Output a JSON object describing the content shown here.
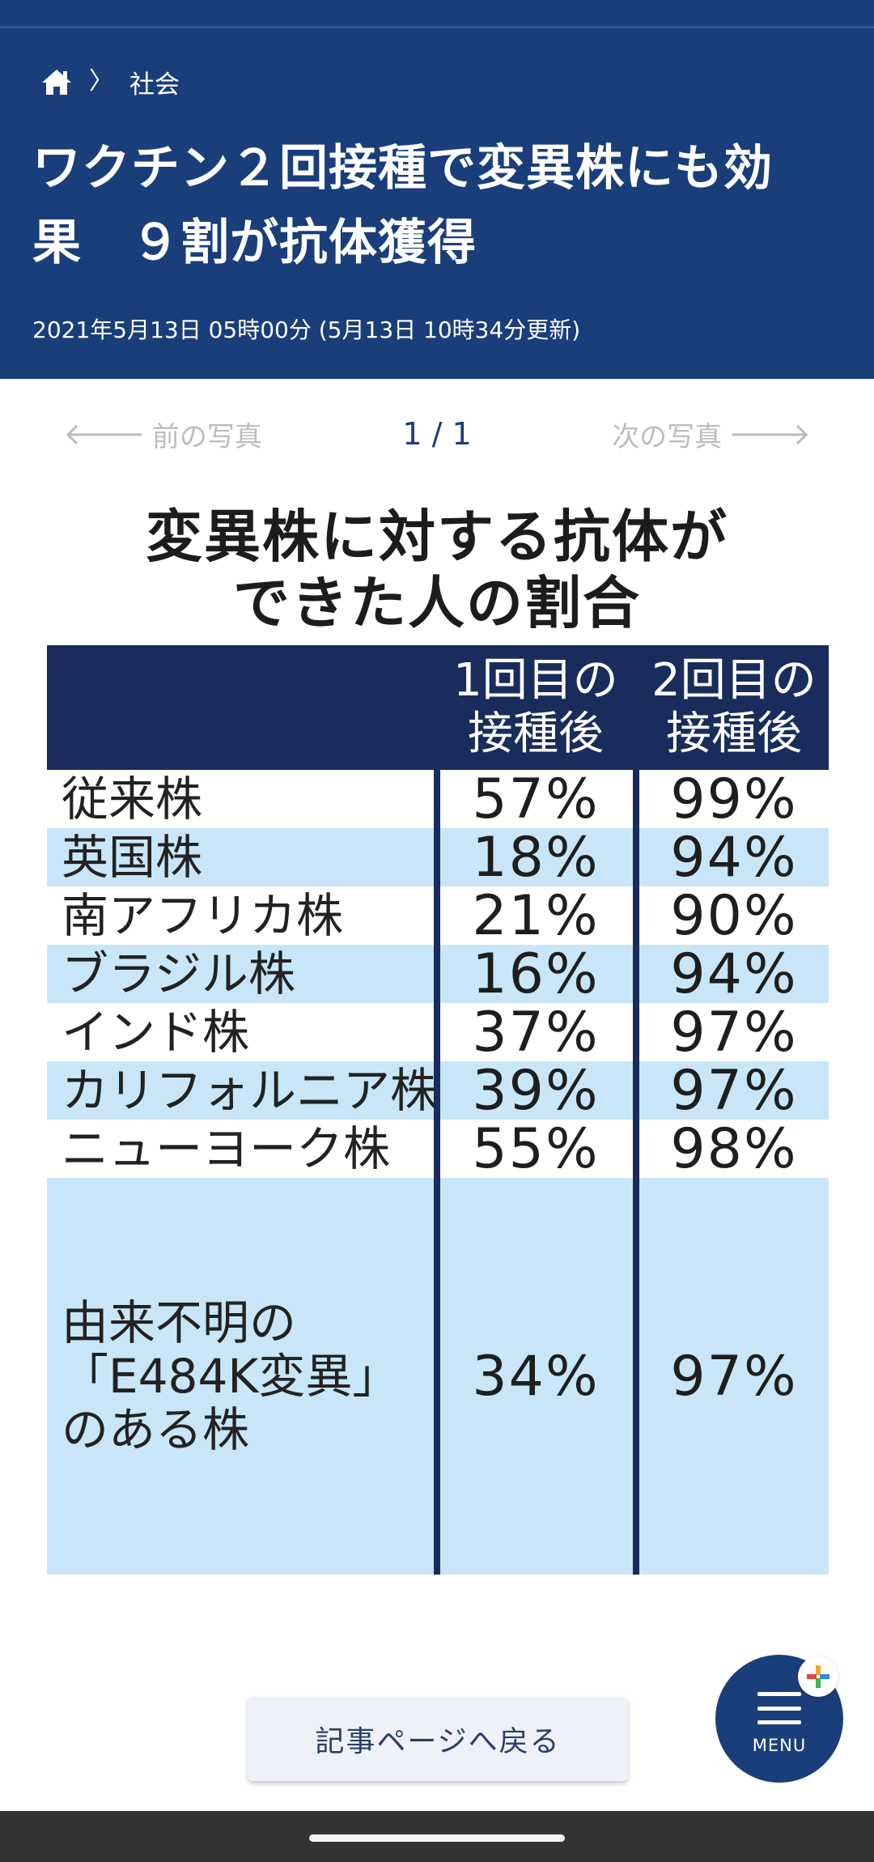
{
  "header": {
    "breadcrumb": {
      "home_icon": "home-icon",
      "separator": "〉",
      "category": "社会"
    },
    "title_line1": "ワクチン２回接種で変異株にも効",
    "title_line2": "果　９割が抗体獲得",
    "timestamp": "2021年5月13日 05時00分 (5月13日 10時34分更新)"
  },
  "photo_nav": {
    "prev_arrow": "🡐",
    "prev_label": "前の写真",
    "pager": "1 / 1",
    "next_label": "次の写真",
    "next_arrow": "🡒"
  },
  "figure": {
    "title_line1": "変異株に対する抗体が",
    "title_line2": "できた人の割合",
    "columns": [
      {
        "line1": "1回目の",
        "line2": "接種後"
      },
      {
        "line1": "2回目の",
        "line2": "接種後"
      }
    ],
    "rows": [
      {
        "name": [
          "従来株"
        ],
        "dose1": "57%",
        "dose2": "99%"
      },
      {
        "name": [
          "英国株"
        ],
        "dose1": "18%",
        "dose2": "94%"
      },
      {
        "name": [
          "南アフリカ株"
        ],
        "dose1": "21%",
        "dose2": "90%"
      },
      {
        "name": [
          "ブラジル株"
        ],
        "dose1": "16%",
        "dose2": "94%"
      },
      {
        "name": [
          "インド株"
        ],
        "dose1": "37%",
        "dose2": "97%"
      },
      {
        "name": [
          "カリフォルニア株"
        ],
        "dose1": "39%",
        "dose2": "97%"
      },
      {
        "name": [
          "ニューヨーク株"
        ],
        "dose1": "55%",
        "dose2": "98%"
      },
      {
        "name": [
          "由来不明の",
          "「E484K変異」",
          "のある株"
        ],
        "dose1": "34%",
        "dose2": "97%"
      }
    ],
    "colors": {
      "header_bg": "#192c5c",
      "band_bg": "#c8e6f7"
    }
  },
  "back_button": {
    "label": "記事ページへ戻る"
  },
  "menu": {
    "icon": "hamburger-icon",
    "label": "MENU",
    "badge_icon": "plus-icon"
  },
  "colors": {
    "brand": "#1a3e7a",
    "nav_disabled": "#bdbdbd"
  }
}
